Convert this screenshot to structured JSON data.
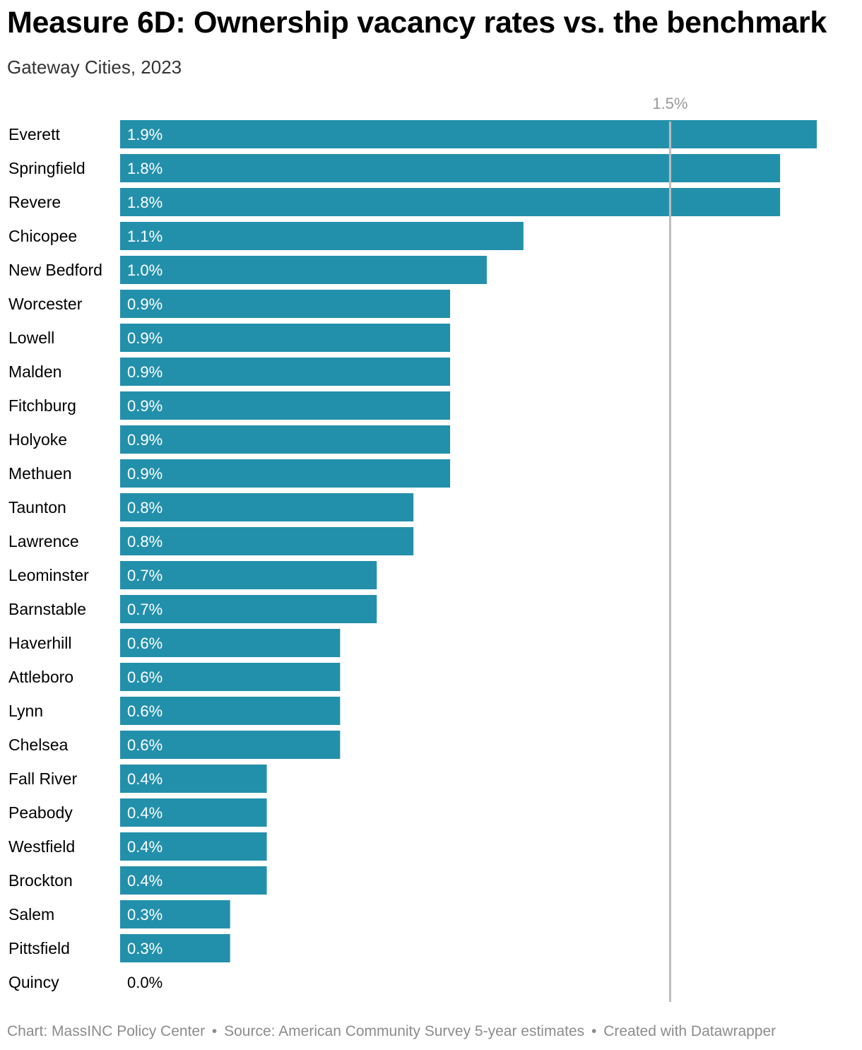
{
  "header": {
    "title": "Measure 6D: Ownership vacancy rates vs. the benchmark",
    "subtitle": "Gateway Cities, 2023"
  },
  "footer": {
    "chart_credit": "Chart: MassINC Policy Center",
    "source": "Source: American Community Survey 5-year estimates",
    "tool": "Created with Datawrapper",
    "separator": "•"
  },
  "colors": {
    "bar": "#2390ab",
    "benchmark_line": "#bdbdbd",
    "benchmark_label": "#999999",
    "label_inside": "#ffffff",
    "label_outside": "#000000"
  },
  "chart_data": {
    "type": "bar",
    "orientation": "horizontal",
    "categories": [
      "Everett",
      "Springfield",
      "Revere",
      "Chicopee",
      "New Bedford",
      "Worcester",
      "Lowell",
      "Malden",
      "Fitchburg",
      "Holyoke",
      "Methuen",
      "Taunton",
      "Lawrence",
      "Leominster",
      "Barnstable",
      "Haverhill",
      "Attleboro",
      "Lynn",
      "Chelsea",
      "Fall River",
      "Peabody",
      "Westfield",
      "Brockton",
      "Salem",
      "Pittsfield",
      "Quincy"
    ],
    "values": [
      1.9,
      1.8,
      1.8,
      1.1,
      1.0,
      0.9,
      0.9,
      0.9,
      0.9,
      0.9,
      0.9,
      0.8,
      0.8,
      0.7,
      0.7,
      0.6,
      0.6,
      0.6,
      0.6,
      0.4,
      0.4,
      0.4,
      0.4,
      0.3,
      0.3,
      0.0
    ],
    "value_labels": [
      "1.9%",
      "1.8%",
      "1.8%",
      "1.1%",
      "1.0%",
      "0.9%",
      "0.9%",
      "0.9%",
      "0.9%",
      "0.9%",
      "0.9%",
      "0.8%",
      "0.8%",
      "0.7%",
      "0.7%",
      "0.6%",
      "0.6%",
      "0.6%",
      "0.6%",
      "0.4%",
      "0.4%",
      "0.4%",
      "0.4%",
      "0.3%",
      "0.3%",
      "0.0%"
    ],
    "xlim": [
      0,
      1.9
    ],
    "benchmark": {
      "value": 1.5,
      "label": "1.5%"
    },
    "grid": false,
    "legend": "none"
  }
}
